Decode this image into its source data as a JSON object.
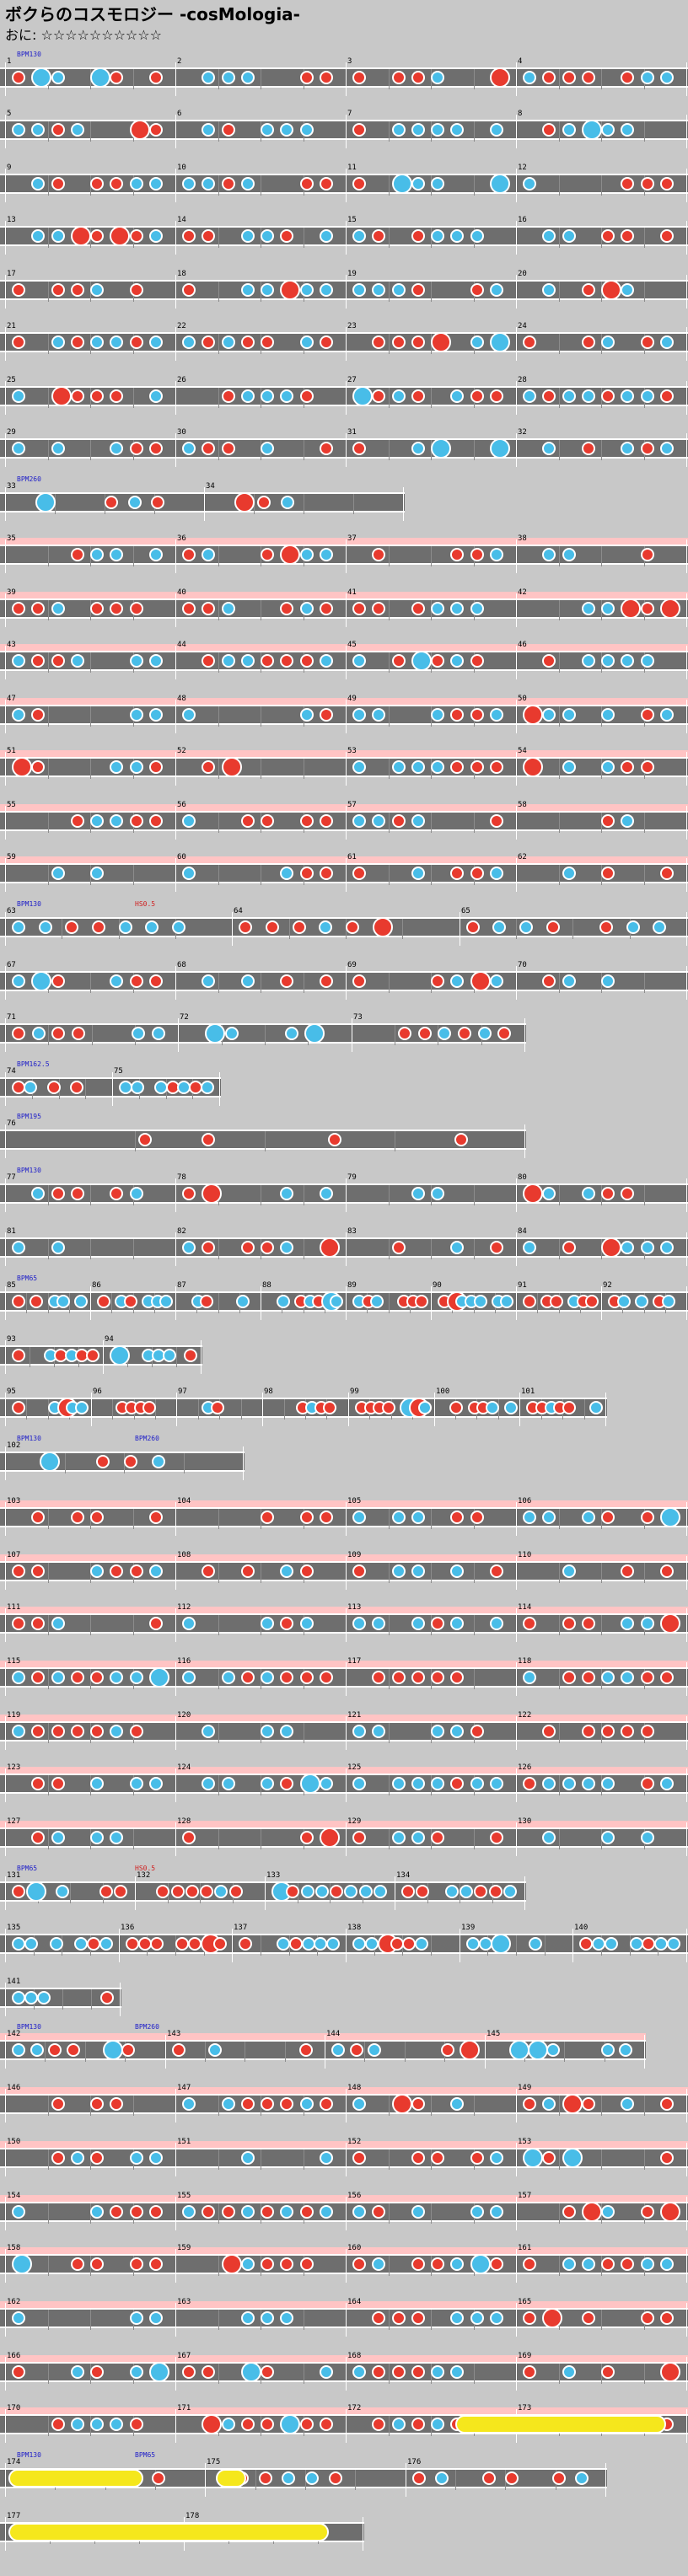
{
  "header": {
    "title": "ボクらのコスモロジー -cosMologia-",
    "difficulty_label": "おに",
    "stars": "☆☆☆☆☆☆☆☆☆☆"
  },
  "colors": {
    "don": "#e83a2e",
    "ka": "#48bde8",
    "drumroll": "#f5e71c",
    "gogo_band": "#ffc4c4",
    "lane": "#6e6e6e",
    "background": "#c8c8c8",
    "bpm_text": "#2020c8",
    "scroll_text": "#d02020"
  },
  "annotations": [
    {
      "row": 1,
      "text": "BPM130",
      "color": "blue"
    },
    {
      "row": 9,
      "text": "BPM260",
      "color": "blue"
    },
    {
      "row": 17,
      "text": "BPM130",
      "color": "blue"
    },
    {
      "row": 17,
      "text": "HS0.5",
      "color": "red"
    },
    {
      "row": 20,
      "text": "BPM162.5",
      "color": "blue"
    },
    {
      "row": 21,
      "text": "BPM195",
      "color": "blue"
    },
    {
      "row": 22,
      "text": "BPM130",
      "color": "blue"
    },
    {
      "row": 24,
      "text": "BPM65",
      "color": "blue"
    },
    {
      "row": 27,
      "text": "BPM130",
      "color": "blue"
    },
    {
      "row": 27,
      "text": "BPM260",
      "color": "blue"
    },
    {
      "row": 35,
      "text": "BPM65",
      "color": "blue"
    },
    {
      "row": 35,
      "text": "HS0.5",
      "color": "red"
    },
    {
      "row": 38,
      "text": "BPM130",
      "color": "blue"
    },
    {
      "row": 38,
      "text": "BPM260",
      "color": "blue"
    },
    {
      "row": 46,
      "text": "BPM130",
      "color": "blue"
    },
    {
      "row": 46,
      "text": "BPM65",
      "color": "blue"
    }
  ],
  "rows": [
    {
      "bars": [
        "1",
        "2",
        "3",
        "4"
      ],
      "gogo": false
    },
    {
      "bars": [
        "5",
        "6",
        "7",
        "8"
      ],
      "gogo": false
    },
    {
      "bars": [
        "9",
        "10",
        "11",
        "12"
      ],
      "gogo": false
    },
    {
      "bars": [
        "13",
        "14",
        "15",
        "16"
      ],
      "gogo": false
    },
    {
      "bars": [
        "17",
        "18",
        "19",
        "20"
      ],
      "gogo": false
    },
    {
      "bars": [
        "21",
        "22",
        "23",
        "24"
      ],
      "gogo": false
    },
    {
      "bars": [
        "25",
        "26",
        "27",
        "28"
      ],
      "gogo": false
    },
    {
      "bars": [
        "29",
        "30",
        "31",
        "32"
      ],
      "gogo": false
    },
    {
      "bars": [
        "33",
        "34"
      ],
      "gogo": false
    },
    {
      "bars": [
        "35",
        "36",
        "37",
        "38"
      ],
      "gogo": true
    },
    {
      "bars": [
        "39",
        "40",
        "41",
        "42"
      ],
      "gogo": true
    },
    {
      "bars": [
        "43",
        "44",
        "45",
        "46"
      ],
      "gogo": true
    },
    {
      "bars": [
        "47",
        "48",
        "49",
        "50"
      ],
      "gogo": true
    },
    {
      "bars": [
        "51",
        "52",
        "53",
        "54"
      ],
      "gogo": true
    },
    {
      "bars": [
        "55",
        "56",
        "57",
        "58"
      ],
      "gogo": true
    },
    {
      "bars": [
        "59",
        "60",
        "61",
        "62"
      ],
      "gogo": true
    },
    {
      "bars": [
        "63",
        "64",
        "65"
      ],
      "gogo": false
    },
    {
      "bars": [
        "67",
        "68",
        "69",
        "70"
      ],
      "gogo": false
    },
    {
      "bars": [
        "71",
        "72",
        "73"
      ],
      "gogo": false
    },
    {
      "bars": [
        "74",
        "75"
      ],
      "gogo": false
    },
    {
      "bars": [
        "76"
      ],
      "gogo": false
    },
    {
      "bars": [
        "77",
        "78",
        "79",
        "80"
      ],
      "gogo": false
    },
    {
      "bars": [
        "81",
        "82",
        "83",
        "84"
      ],
      "gogo": false
    },
    {
      "bars": [
        "85",
        "86",
        "87",
        "88",
        "89",
        "90",
        "91",
        "92"
      ],
      "gogo": false
    },
    {
      "bars": [
        "93",
        "94"
      ],
      "gogo": false
    },
    {
      "bars": [
        "95",
        "96",
        "97",
        "98",
        "99",
        "100",
        "101"
      ],
      "gogo": false
    },
    {
      "bars": [
        "102"
      ],
      "gogo": false
    },
    {
      "bars": [
        "103",
        "104",
        "105",
        "106"
      ],
      "gogo": true
    },
    {
      "bars": [
        "107",
        "108",
        "109",
        "110"
      ],
      "gogo": true
    },
    {
      "bars": [
        "111",
        "112",
        "113",
        "114"
      ],
      "gogo": true
    },
    {
      "bars": [
        "115",
        "116",
        "117",
        "118"
      ],
      "gogo": true
    },
    {
      "bars": [
        "119",
        "120",
        "121",
        "122"
      ],
      "gogo": true
    },
    {
      "bars": [
        "123",
        "124",
        "125",
        "126"
      ],
      "gogo": true
    },
    {
      "bars": [
        "127",
        "128",
        "129",
        "130"
      ],
      "gogo": true
    },
    {
      "bars": [
        "131",
        "132",
        "133",
        "134"
      ],
      "gogo": false
    },
    {
      "bars": [
        "135",
        "136",
        "137",
        "138",
        "139",
        "140"
      ],
      "gogo": false
    },
    {
      "bars": [
        "141"
      ],
      "gogo": false
    },
    {
      "bars": [
        "142",
        "143",
        "144",
        "145"
      ],
      "gogo": true
    },
    {
      "bars": [
        "146",
        "147",
        "148",
        "149"
      ],
      "gogo": true
    },
    {
      "bars": [
        "150",
        "151",
        "152",
        "153"
      ],
      "gogo": true
    },
    {
      "bars": [
        "154",
        "155",
        "156",
        "157"
      ],
      "gogo": true
    },
    {
      "bars": [
        "158",
        "159",
        "160",
        "161"
      ],
      "gogo": true
    },
    {
      "bars": [
        "162",
        "163",
        "164",
        "165"
      ],
      "gogo": true
    },
    {
      "bars": [
        "166",
        "167",
        "168",
        "169"
      ],
      "gogo": true
    },
    {
      "bars": [
        "170",
        "171",
        "172",
        "173"
      ],
      "gogo": true
    },
    {
      "bars": [
        "174",
        "175",
        "176"
      ],
      "gogo": false
    },
    {
      "bars": [
        "177",
        "178"
      ],
      "gogo": false
    }
  ]
}
